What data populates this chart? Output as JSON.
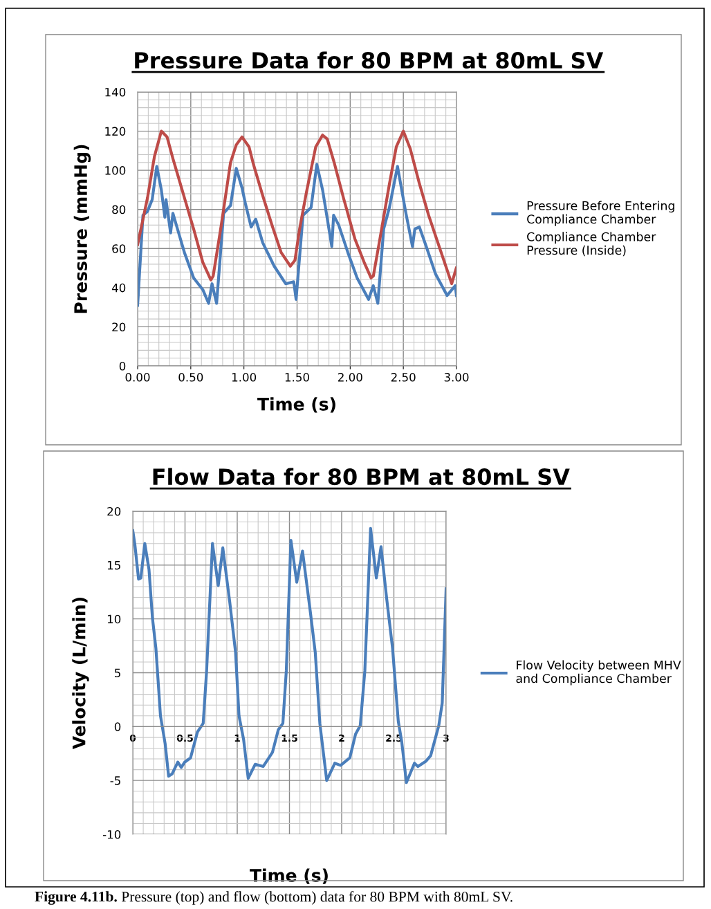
{
  "chart_data": [
    {
      "type": "line",
      "title": "Pressure Data for 80 BPM at 80mL SV",
      "xlabel": "Time (s)",
      "ylabel": "Pressure (mmHg)",
      "xlim": [
        0,
        3
      ],
      "xticks": [
        {
          "value": 0,
          "label": "0.00"
        },
        {
          "value": 0.5,
          "label": "0.50"
        },
        {
          "value": 1,
          "label": "1.00"
        },
        {
          "value": 1.5,
          "label": "1.50"
        },
        {
          "value": 2,
          "label": "2.00"
        },
        {
          "value": 2.5,
          "label": "2.50"
        },
        {
          "value": 3,
          "label": "3.00"
        }
      ],
      "ylim": [
        0,
        140
      ],
      "yticks": [
        0,
        20,
        40,
        60,
        80,
        100,
        120,
        140
      ],
      "grid": true,
      "legend": "right",
      "marker": "none",
      "line_style": "solid",
      "series": [
        {
          "name": "Pressure Before Entering Compliance Chamber",
          "color": "#4a7ebb",
          "x": [
            0,
            0.05,
            0.093,
            0.137,
            0.18,
            0.223,
            0.256,
            0.267,
            0.31,
            0.332,
            0.375,
            0.44,
            0.527,
            0.613,
            0.668,
            0.7,
            0.743,
            0.809,
            0.874,
            0.928,
            0.982,
            1.014,
            1.068,
            1.111,
            1.177,
            1.285,
            1.393,
            1.469,
            1.491,
            1.556,
            1.632,
            1.686,
            1.74,
            1.827,
            1.844,
            1.892,
            1.978,
            2.065,
            2.173,
            2.217,
            2.26,
            2.315,
            2.369,
            2.445,
            2.521,
            2.586,
            2.608,
            2.651,
            2.716,
            2.803,
            2.912,
            2.988,
            3.0
          ],
          "values": [
            31,
            77,
            79,
            85,
            102,
            90,
            76,
            85,
            68,
            78,
            70,
            58,
            45,
            39,
            32,
            42,
            32,
            78,
            82,
            101,
            91,
            83,
            71,
            75,
            63,
            51,
            42,
            43,
            34,
            77,
            81,
            103,
            90,
            61,
            77,
            72,
            58,
            45,
            34,
            41,
            32,
            70,
            81,
            102,
            79,
            61,
            70,
            71,
            61,
            47,
            36,
            41,
            36
          ]
        },
        {
          "name": "Compliance Chamber Pressure (Inside)",
          "color": "#be4b48",
          "x": [
            0,
            0.093,
            0.158,
            0.223,
            0.277,
            0.332,
            0.44,
            0.527,
            0.613,
            0.689,
            0.711,
            0.787,
            0.874,
            0.928,
            0.982,
            1.048,
            1.09,
            1.177,
            1.264,
            1.35,
            1.437,
            1.48,
            1.524,
            1.589,
            1.676,
            1.74,
            1.784,
            1.849,
            1.936,
            2.044,
            2.131,
            2.196,
            2.218,
            2.283,
            2.369,
            2.434,
            2.5,
            2.565,
            2.652,
            2.738,
            2.825,
            2.912,
            2.955,
            2.998
          ],
          "values": [
            62,
            86,
            107,
            120,
            117,
            106,
            86,
            70,
            53,
            44,
            46,
            72,
            104,
            113,
            117,
            112,
            103,
            87,
            72,
            58,
            51,
            54,
            70,
            89,
            112,
            118,
            116,
            104,
            86,
            65,
            53,
            45,
            46,
            66,
            93,
            112,
            120,
            111,
            93,
            77,
            63,
            49,
            42,
            50
          ]
        }
      ]
    },
    {
      "type": "line",
      "title": "Flow Data for 80 BPM at 80mL SV",
      "xlabel": "Time (s)",
      "ylabel": "Velocity (L/min)",
      "xlim": [
        0,
        3
      ],
      "xticks": [
        0,
        0.5,
        1,
        1.5,
        2,
        2.5,
        3
      ],
      "ylim": [
        -10,
        20
      ],
      "yticks": [
        -10,
        -5,
        0,
        5,
        10,
        15,
        20
      ],
      "grid": true,
      "legend": "right",
      "marker": "none",
      "line_style": "solid",
      "series": [
        {
          "name": "Flow Velocity between MHV and Compliance Chamber",
          "color": "#4a7ebb",
          "x": [
            0,
            0.02,
            0.055,
            0.077,
            0.115,
            0.155,
            0.188,
            0.221,
            0.265,
            0.31,
            0.343,
            0.376,
            0.431,
            0.464,
            0.497,
            0.553,
            0.619,
            0.674,
            0.707,
            0.763,
            0.818,
            0.862,
            0.928,
            0.984,
            1.017,
            1.061,
            1.105,
            1.172,
            1.249,
            1.337,
            1.393,
            1.437,
            1.47,
            1.514,
            1.57,
            1.625,
            1.702,
            1.747,
            1.791,
            1.857,
            1.934,
            1.99,
            2.078,
            2.133,
            2.178,
            2.222,
            2.277,
            2.332,
            2.377,
            2.432,
            2.487,
            2.542,
            2.575,
            2.62,
            2.697,
            2.73,
            2.808,
            2.852,
            2.93,
            2.963,
            3.0
          ],
          "values": [
            18.2,
            16.9,
            13.7,
            13.8,
            17.0,
            14.6,
            10.1,
            7.3,
            1.0,
            -1.6,
            -4.6,
            -4.4,
            -3.3,
            -3.8,
            -3.3,
            -2.9,
            -0.5,
            0.3,
            5.2,
            17.0,
            13.1,
            16.6,
            11.6,
            6.9,
            1.0,
            -1.2,
            -4.8,
            -3.5,
            -3.7,
            -2.4,
            -0.3,
            0.3,
            5.2,
            17.3,
            13.4,
            16.3,
            10.5,
            6.9,
            0.3,
            -5.0,
            -3.4,
            -3.6,
            -2.9,
            -0.7,
            0.1,
            5.2,
            18.4,
            13.8,
            16.7,
            11.8,
            7.3,
            0.5,
            -1.4,
            -5.2,
            -3.4,
            -3.7,
            -3.2,
            -2.7,
            0.1,
            2.2,
            12.8
          ]
        }
      ]
    },
    {
      "type": "other",
      "annotations": [
        "Figure 4.11b. Pressure (top) and flow (bottom) data for 80 BPM with 80mL SV."
      ]
    }
  ]
}
